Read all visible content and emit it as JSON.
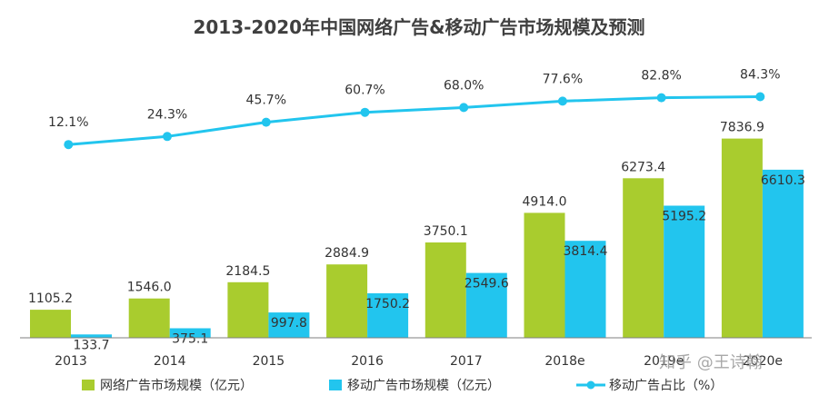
{
  "chart_data": {
    "type": "bar",
    "title": "2013-2020年中国网络广告&移动广告市场规模及预测",
    "categories": [
      "2013",
      "2014",
      "2015",
      "2016",
      "2017",
      "2018e",
      "2019e",
      "2020e"
    ],
    "series": [
      {
        "name": "网络广告市场规模（亿元）",
        "type": "bar",
        "color": "#a9cc2e",
        "values": [
          1105.2,
          1546.0,
          2184.5,
          2884.9,
          3750.1,
          4914.0,
          6273.4,
          7836.9
        ],
        "labels": [
          "1105.2",
          "1546.0",
          "2184.5",
          "2884.9",
          "3750.1",
          "4914.0",
          "6273.4",
          "7836.9"
        ]
      },
      {
        "name": "移动广告市场规模（亿元）",
        "type": "bar",
        "color": "#22c5ee",
        "values": [
          133.7,
          375.1,
          997.8,
          1750.2,
          2549.6,
          3814.4,
          5195.2,
          6610.3
        ],
        "labels": [
          "133.7",
          "375.1",
          "997.8",
          "1750.2",
          "2549.6",
          "3814.4",
          "5195.2",
          "6610.3"
        ]
      },
      {
        "name": "移动广告占比（%）",
        "type": "line",
        "color": "#22c5ee",
        "values": [
          12.1,
          24.3,
          45.7,
          60.7,
          68.0,
          77.6,
          82.8,
          84.3
        ],
        "labels": [
          "12.1%",
          "24.3%",
          "45.7%",
          "60.7%",
          "68.0%",
          "77.6%",
          "82.8%",
          "84.3%"
        ]
      }
    ],
    "ylim": [
      0,
      8000
    ],
    "y2lim": [
      0,
      100
    ],
    "grid": false,
    "legend_position": "bottom"
  },
  "watermark": {
    "text": "知乎 @王诗翰"
  }
}
